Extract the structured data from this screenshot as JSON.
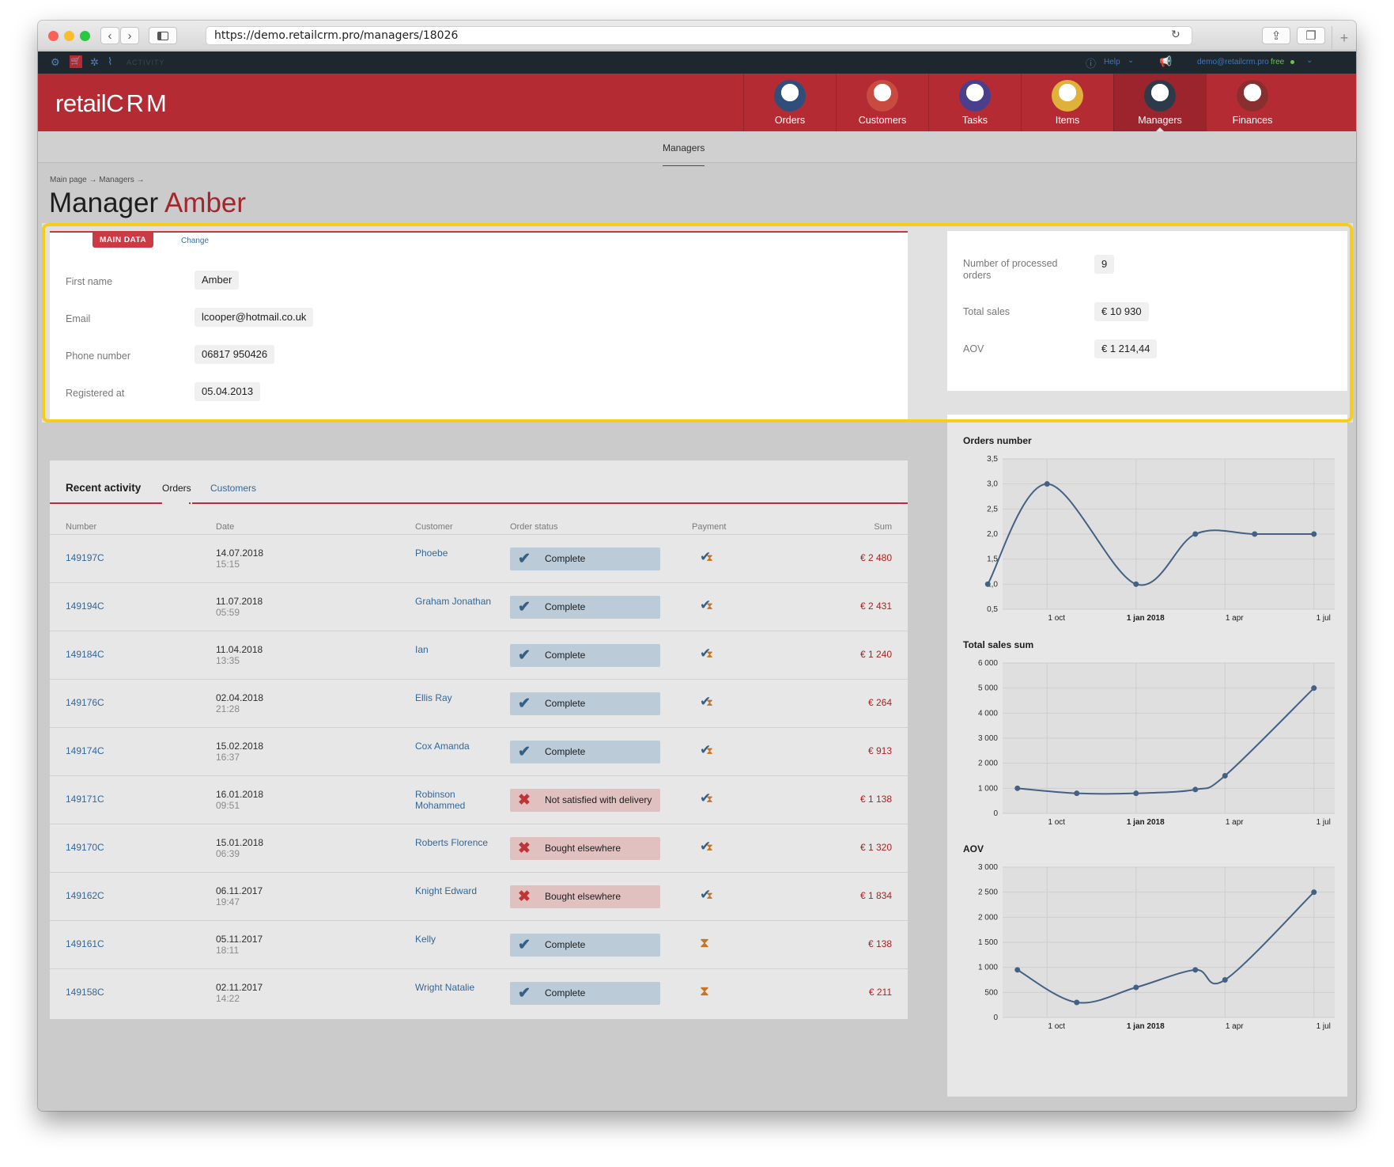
{
  "browser": {
    "url": "https://demo.retailcrm.pro/managers/18026"
  },
  "topbar": {
    "activity_label": "ACTIVITY",
    "help_label": "Help",
    "user_email": "demo@retailcrm.pro",
    "plan_label": "free"
  },
  "header": {
    "logo_text_1": "retail",
    "logo_text_2": "CRM",
    "modules": [
      {
        "label": "Orders",
        "color": "#2f4f7a"
      },
      {
        "label": "Customers",
        "color": "#c94a3e"
      },
      {
        "label": "Tasks",
        "color": "#4a3f8c"
      },
      {
        "label": "Items",
        "color": "#e0b13a"
      },
      {
        "label": "Managers",
        "color": "#2d3a4a",
        "active": true
      },
      {
        "label": "Finances",
        "color": "#8a2f2f"
      }
    ]
  },
  "subnav": {
    "active": "Managers"
  },
  "breadcrumb": "Main page → Managers →",
  "page": {
    "title_prefix": "Manager",
    "title_name": "Amber"
  },
  "main_data": {
    "tab_label": "MAIN DATA",
    "change_link": "Change",
    "fields": [
      {
        "label": "First name",
        "value": "Amber"
      },
      {
        "label": "Email",
        "value": "lcooper@hotmail.co.uk"
      },
      {
        "label": "Phone number",
        "value": "06817 950426"
      },
      {
        "label": "Registered at",
        "value": "05.04.2013"
      }
    ]
  },
  "stats": {
    "processed_label_1": "Number of processed",
    "processed_label_2": "orders",
    "processed_value": "9",
    "total_sales_label": "Total sales",
    "total_sales_value": "€ 10 930",
    "aov_label": "AOV",
    "aov_value": "€ 1 214,44"
  },
  "activity": {
    "tabs": [
      "Recent activity",
      "Orders",
      "Customers"
    ],
    "columns": [
      "Number",
      "Date",
      "Customer",
      "Order status",
      "Payment",
      "Sum"
    ],
    "rows": [
      {
        "number": "149197C",
        "date": "14.07.2018",
        "time": "15:15",
        "customer": "Phoebe",
        "status": "Complete",
        "ok": true,
        "pay": "mixed",
        "sum": "€ 2 480"
      },
      {
        "number": "149194C",
        "date": "11.07.2018",
        "time": "05:59",
        "customer": "Graham Jonathan",
        "status": "Complete",
        "ok": true,
        "pay": "mixed",
        "sum": "€ 2 431"
      },
      {
        "number": "149184C",
        "date": "11.04.2018",
        "time": "13:35",
        "customer": "Ian",
        "status": "Complete",
        "ok": true,
        "pay": "mixed",
        "sum": "€ 1 240"
      },
      {
        "number": "149176C",
        "date": "02.04.2018",
        "time": "21:28",
        "customer": "Ellis Ray",
        "status": "Complete",
        "ok": true,
        "pay": "mixed",
        "sum": "€ 264"
      },
      {
        "number": "149174C",
        "date": "15.02.2018",
        "time": "16:37",
        "customer": "Cox Amanda",
        "status": "Complete",
        "ok": true,
        "pay": "mixed",
        "sum": "€ 913"
      },
      {
        "number": "149171C",
        "date": "16.01.2018",
        "time": "09:51",
        "customer": "Robinson Mohammed",
        "status": "Not satisfied with delivery",
        "ok": false,
        "pay": "mixed",
        "sum": "€ 1 138"
      },
      {
        "number": "149170C",
        "date": "15.01.2018",
        "time": "06:39",
        "customer": "Roberts Florence",
        "status": "Bought elsewhere",
        "ok": false,
        "pay": "mixed",
        "sum": "€ 1 320"
      },
      {
        "number": "149162C",
        "date": "06.11.2017",
        "time": "19:47",
        "customer": "Knight Edward",
        "status": "Bought elsewhere",
        "ok": false,
        "pay": "mixed",
        "sum": "€ 1 834"
      },
      {
        "number": "149161C",
        "date": "05.11.2017",
        "time": "18:11",
        "customer": "Kelly",
        "status": "Complete",
        "ok": true,
        "pay": "pending",
        "sum": "€ 138"
      },
      {
        "number": "149158C",
        "date": "02.11.2017",
        "time": "14:22",
        "customer": "Wright Natalie",
        "status": "Complete",
        "ok": true,
        "pay": "pending",
        "sum": "€ 211"
      }
    ]
  },
  "chart_data": [
    {
      "type": "line",
      "title": "Orders number",
      "x": [
        "2017-08",
        "2017-10",
        "2018-01",
        "2018-03",
        "2018-05",
        "2018-07"
      ],
      "values": [
        1.0,
        3.0,
        1.0,
        2.0,
        2.0,
        2.0
      ],
      "y_ticks": [
        "3,5",
        "3,0",
        "2,5",
        "2,0",
        "1,5",
        "1,0",
        "0,5"
      ],
      "ylim": [
        0.5,
        3.5
      ],
      "x_ticks": [
        "1 oct",
        "1 jan 2018",
        "1 apr",
        "1 jul"
      ]
    },
    {
      "type": "line",
      "title": "Total sales sum",
      "x": [
        "2017-09",
        "2017-11",
        "2018-01",
        "2018-03",
        "2018-04",
        "2018-07"
      ],
      "values": [
        1000,
        800,
        800,
        950,
        1500,
        5000
      ],
      "y_ticks": [
        "6 000",
        "5 000",
        "4 000",
        "3 000",
        "2 000",
        "1 000",
        "0"
      ],
      "ylim": [
        0,
        6000
      ],
      "x_ticks": [
        "1 oct",
        "1 jan 2018",
        "1 apr",
        "1 jul"
      ]
    },
    {
      "type": "line",
      "title": "AOV",
      "x": [
        "2017-09",
        "2017-11",
        "2018-01",
        "2018-03",
        "2018-04",
        "2018-07"
      ],
      "values": [
        950,
        300,
        600,
        950,
        750,
        2500
      ],
      "y_ticks": [
        "3 000",
        "2 500",
        "2 000",
        "1 500",
        "1 000",
        "500",
        "0"
      ],
      "ylim": [
        0,
        3000
      ],
      "x_ticks": [
        "1 oct",
        "1 jan 2018",
        "1 apr",
        "1 jul"
      ]
    }
  ],
  "colors": {
    "brand": "#b42b34",
    "highlight": "#f6cc1d",
    "line": "#4a6c91",
    "link": "#3a72a8"
  }
}
